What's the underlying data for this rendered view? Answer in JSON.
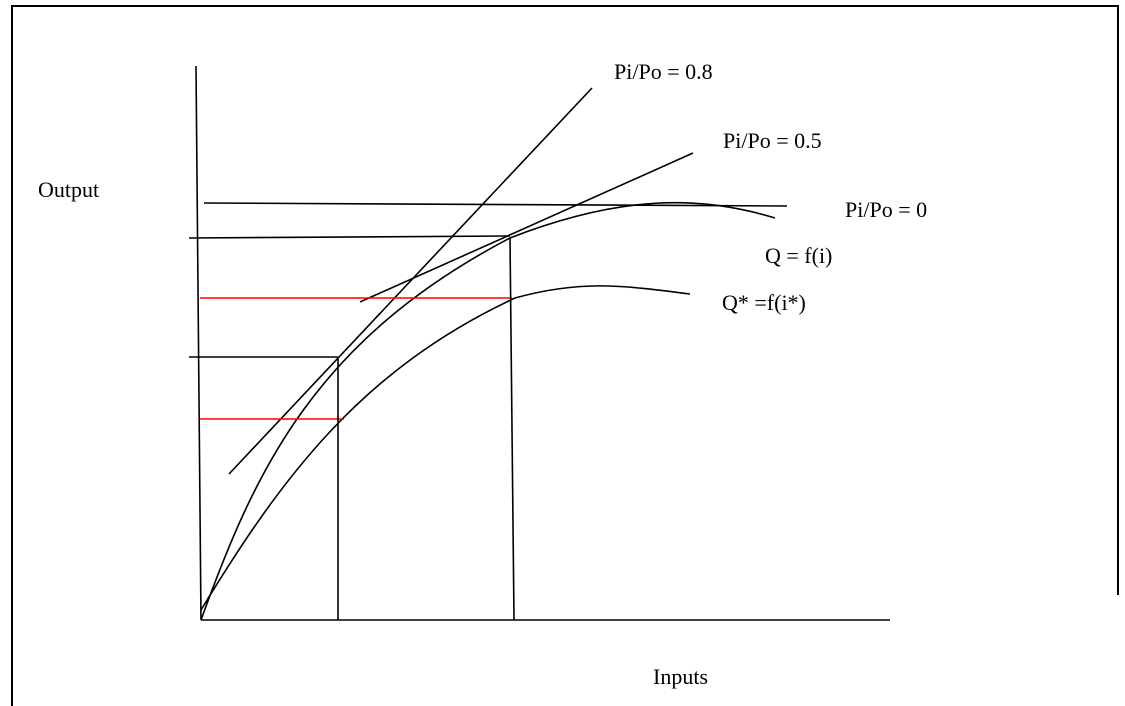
{
  "labels": {
    "y_axis": "Output",
    "x_axis": "Inputs",
    "line_08": "Pi/Po = 0.8",
    "line_05": "Pi/Po = 0.5",
    "line_0": "Pi/Po = 0",
    "curve_q": "Q = f(i)",
    "curve_qstar": "Q* =f(i*)"
  },
  "colors": {
    "stroke": "#000000",
    "highlight": "#ff0000",
    "background": "#ffffff"
  }
}
